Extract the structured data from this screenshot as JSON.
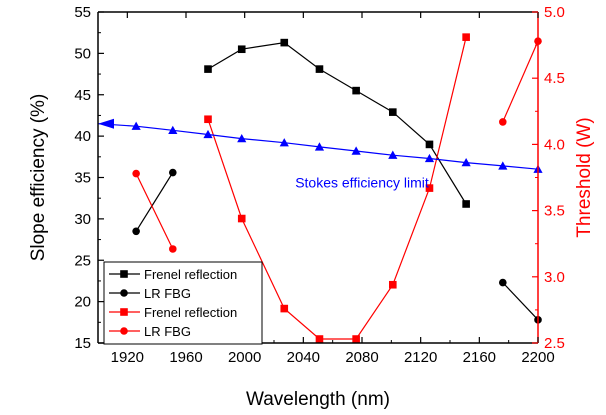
{
  "chart_data": {
    "type": "line",
    "xlabel": "Wavelength (nm)",
    "ylabel_left": "Slope efficiency (%)",
    "ylabel_right": "Threshold (W)",
    "xlim": [
      1900,
      2200
    ],
    "ylim_left": [
      15,
      55
    ],
    "ylim_right": [
      2.5,
      5.0
    ],
    "x_ticks": [
      1920,
      1960,
      2000,
      2040,
      2080,
      2120,
      2160,
      2200
    ],
    "y_left_ticks": [
      15,
      20,
      25,
      30,
      35,
      40,
      45,
      50,
      55
    ],
    "y_right_ticks": [
      2.5,
      3.0,
      3.5,
      4.0,
      4.5,
      5.0
    ],
    "y_right_tick_labels": [
      "2.5",
      "3.0",
      "3.5",
      "4.0",
      "4.5",
      "5.0"
    ],
    "right_axis_color": "#ff0000",
    "grid": false,
    "legend_position": "bottom-left",
    "series": [
      {
        "name": "Frenel reflection",
        "axis": "left",
        "color": "#000000",
        "marker": "square",
        "segments": [
          [
            [
              1975,
              48.1
            ],
            [
              1998,
              50.5
            ],
            [
              2027,
              51.3
            ],
            [
              2051,
              48.1
            ],
            [
              2076,
              45.5
            ],
            [
              2101,
              42.9
            ],
            [
              2126,
              39.0
            ],
            [
              2151,
              31.8
            ]
          ]
        ]
      },
      {
        "name": "LR FBG",
        "axis": "left",
        "color": "#000000",
        "marker": "circle",
        "segments": [
          [
            [
              1926,
              28.5
            ],
            [
              1951,
              35.6
            ]
          ],
          [
            [
              2176,
              22.3
            ],
            [
              2200,
              17.8
            ]
          ]
        ]
      },
      {
        "name": "Frenel reflection",
        "axis": "right",
        "color": "#ff0000",
        "marker": "square",
        "segments": [
          [
            [
              1975,
              4.19
            ],
            [
              1998,
              3.44
            ],
            [
              2027,
              2.76
            ],
            [
              2051,
              2.53
            ],
            [
              2076,
              2.53
            ],
            [
              2101,
              2.94
            ],
            [
              2126,
              3.67
            ],
            [
              2151,
              4.81
            ]
          ]
        ]
      },
      {
        "name": "LR FBG",
        "axis": "right",
        "color": "#ff0000",
        "marker": "circle",
        "segments": [
          [
            [
              1926,
              3.78
            ],
            [
              1951,
              3.21
            ]
          ],
          [
            [
              2176,
              4.17
            ],
            [
              2200,
              4.78
            ]
          ]
        ]
      },
      {
        "name": "",
        "axis": "left",
        "color": "#0000ff",
        "marker": "triangle",
        "segments": [
          [
            [
              1900,
              41.5
            ],
            [
              1926,
              41.2
            ],
            [
              1951,
              40.7
            ],
            [
              1975,
              40.2
            ],
            [
              1998,
              39.7
            ],
            [
              2027,
              39.2
            ],
            [
              2051,
              38.7
            ],
            [
              2076,
              38.2
            ],
            [
              2101,
              37.7
            ],
            [
              2126,
              37.3
            ],
            [
              2151,
              36.8
            ],
            [
              2176,
              36.4
            ],
            [
              2200,
              36.0
            ]
          ]
        ]
      }
    ],
    "annotations": [
      {
        "text": "Stokes efficiency limit",
        "color": "#0000ff",
        "x": 2080,
        "y": 33.8
      }
    ],
    "legend": [
      {
        "label": "Frenel reflection",
        "color": "#000000",
        "marker": "square"
      },
      {
        "label": "LR FBG",
        "color": "#000000",
        "marker": "circle"
      },
      {
        "label": "Frenel reflection",
        "color": "#ff0000",
        "marker": "square"
      },
      {
        "label": "LR FBG",
        "color": "#ff0000",
        "marker": "circle"
      }
    ]
  }
}
